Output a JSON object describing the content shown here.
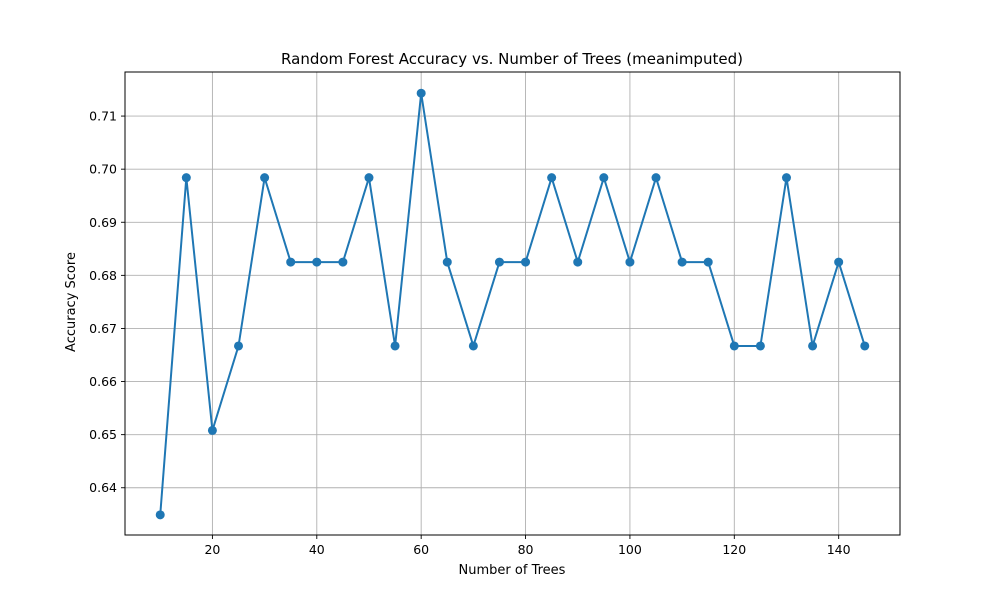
{
  "chart_data": {
    "type": "line",
    "title": "Random Forest Accuracy vs. Number of Trees (meanimputed)",
    "xlabel": "Number of Trees",
    "ylabel": "Accuracy Score",
    "xlim": [
      3.25,
      151.75
    ],
    "ylim": [
      0.6311,
      0.7183
    ],
    "xticks": [
      20,
      40,
      60,
      80,
      100,
      120,
      140
    ],
    "yticks": [
      0.64,
      0.65,
      0.66,
      0.67,
      0.68,
      0.69,
      0.7,
      0.71
    ],
    "ytick_labels": [
      "0.64",
      "0.65",
      "0.66",
      "0.67",
      "0.68",
      "0.69",
      "0.70",
      "0.71"
    ],
    "grid": true,
    "series": [
      {
        "color": "#1f77b4",
        "marker": "circle",
        "x": [
          10,
          15,
          20,
          25,
          30,
          35,
          40,
          45,
          50,
          55,
          60,
          65,
          70,
          75,
          80,
          85,
          90,
          95,
          100,
          105,
          110,
          115,
          120,
          125,
          130,
          135,
          140,
          145
        ],
        "y": [
          0.6349,
          0.6984,
          0.6508,
          0.6667,
          0.6984,
          0.6825,
          0.6825,
          0.6825,
          0.6984,
          0.6667,
          0.7143,
          0.6825,
          0.6667,
          0.6825,
          0.6825,
          0.6984,
          0.6825,
          0.6984,
          0.6825,
          0.6984,
          0.6825,
          0.6825,
          0.6667,
          0.6667,
          0.6984,
          0.6667,
          0.6825,
          0.6667
        ]
      }
    ]
  }
}
